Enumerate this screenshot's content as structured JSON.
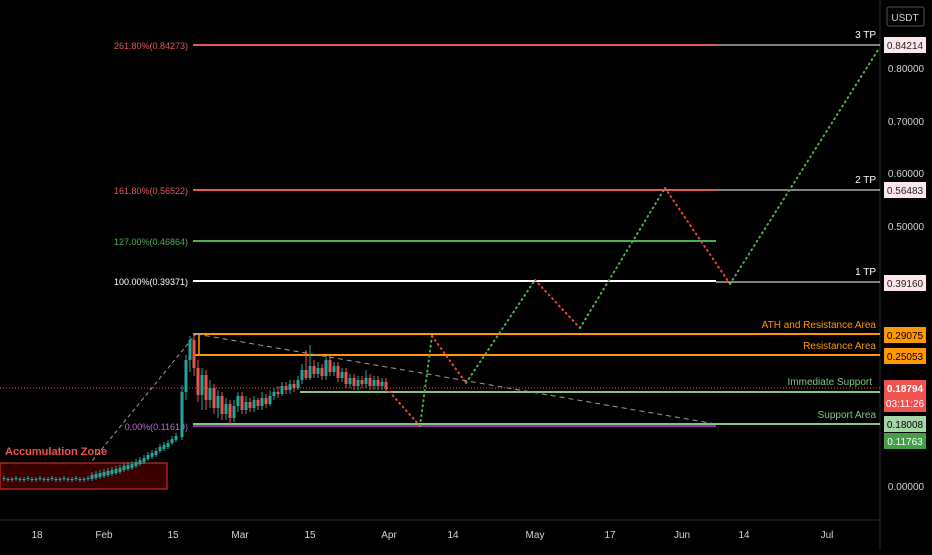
{
  "chart_data": {
    "type": "candlestick",
    "currency": "USDT",
    "price_axis_ticks": [
      "0.80000",
      "0.70000",
      "0.60000",
      "0.50000",
      "0.00000"
    ],
    "time_axis_ticks": [
      "18",
      "Feb",
      "15",
      "Mar",
      "15",
      "Apr",
      "14",
      "May",
      "17",
      "Jun",
      "14",
      "Jul"
    ],
    "current_price": "0.18794",
    "countdown": "03:11:26",
    "fib_levels": [
      {
        "label": "261.80%(0.84273)",
        "price_tag": "0.84214",
        "tp": "3 TP",
        "price": 0.84273,
        "color": "#e05a5a"
      },
      {
        "label": "161.80%(0.56522)",
        "price_tag": "0.56483",
        "tp": "2 TP",
        "price": 0.56522,
        "color": "#e05a5a"
      },
      {
        "label": "127.00%(0.46864)",
        "price_tag": "",
        "tp": "",
        "price": 0.46864,
        "color": "#4caf50"
      },
      {
        "label": "100.00%(0.39371)",
        "price_tag": "0.39160",
        "tp": "1 TP",
        "price": 0.39371,
        "color": "#ffffff"
      },
      {
        "label": "0.00%(0.11619)",
        "price_tag": "0.18008",
        "tp": "",
        "price": 0.11619,
        "color": "#9c27b0"
      }
    ],
    "zones": [
      {
        "name": "ATH and Resistance Area",
        "price_tag": "0.29075",
        "color": "#ff9800"
      },
      {
        "name": "Resistance Area",
        "price_tag": "0.25053",
        "color": "#ff9800"
      },
      {
        "name": "Immediate Support",
        "price_tag": "",
        "color": "#81c784"
      },
      {
        "name": "Support Area",
        "price_tag": "0.11763",
        "color": "#81c784"
      }
    ],
    "annotations": [
      "Accumulation Zone"
    ],
    "colors": {
      "up": "#26a69a",
      "down": "#ef5350",
      "background": "#000000",
      "axis_text": "#d1d4dc",
      "projection_up": "#4caf50",
      "projection_down": "#f44336"
    }
  }
}
